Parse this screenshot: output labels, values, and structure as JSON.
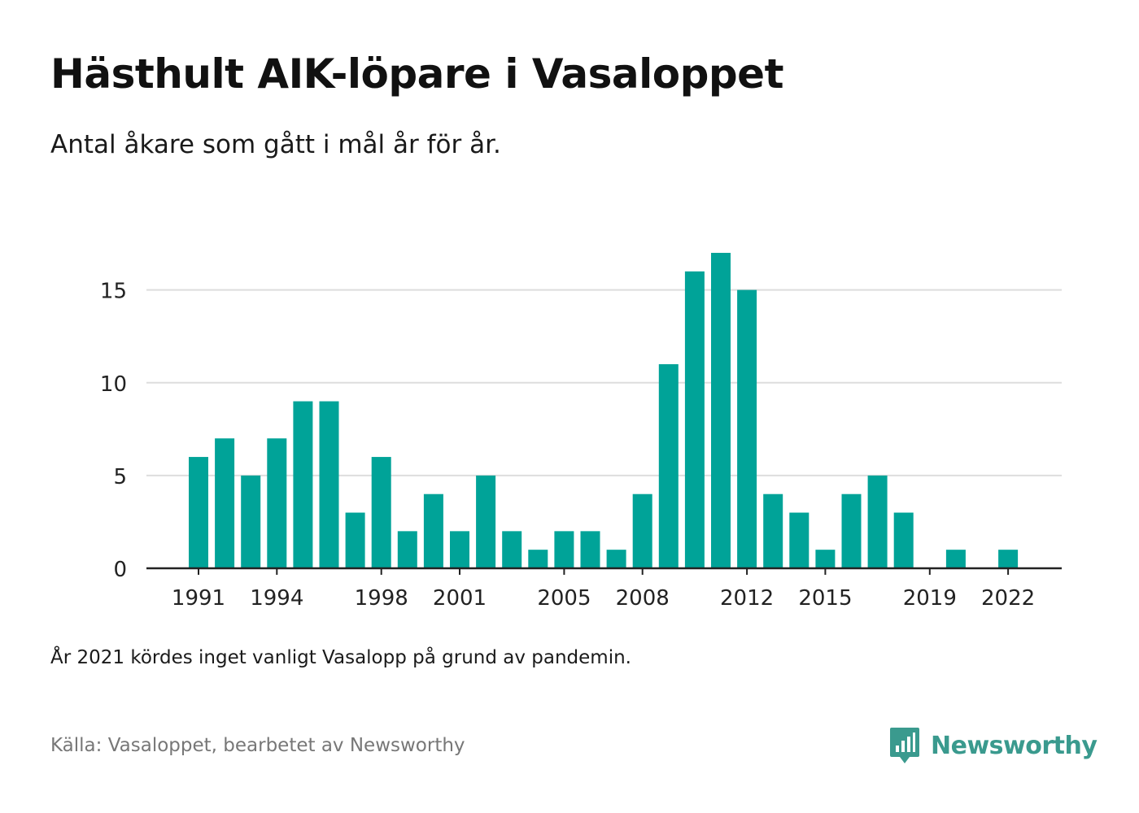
{
  "header": {
    "title": "Hästhult AIK-löpare i Vasaloppet",
    "subtitle": "Antal åkare som gått i mål år för år."
  },
  "footer": {
    "note": "År 2021 kördes inget vanligt Vasalopp på grund av pandemin.",
    "source": "Källa: Vasaloppet, bearbetet av Newsworthy",
    "brand": "Newsworthy"
  },
  "colors": {
    "bar": "#00a398",
    "brand": "#3a9a8e",
    "grid": "#dddddd",
    "axis": "#222222",
    "tick_text": "#222222"
  },
  "icons": {
    "brand": "bar-chart-speech-bubble-icon"
  },
  "chart_data": {
    "type": "bar",
    "title": "Hästhult AIK-löpare i Vasaloppet",
    "subtitle": "Antal åkare som gått i mål år för år.",
    "xlabel": "",
    "ylabel": "",
    "x": [
      1991,
      1992,
      1993,
      1994,
      1995,
      1996,
      1997,
      1998,
      1999,
      2000,
      2001,
      2002,
      2003,
      2004,
      2005,
      2006,
      2007,
      2008,
      2009,
      2010,
      2011,
      2012,
      2013,
      2014,
      2015,
      2016,
      2017,
      2018,
      2019,
      2020,
      2021,
      2022
    ],
    "values": [
      6,
      7,
      5,
      7,
      9,
      9,
      3,
      6,
      2,
      4,
      2,
      5,
      2,
      1,
      2,
      2,
      1,
      4,
      11,
      16,
      17,
      15,
      4,
      3,
      1,
      4,
      5,
      3,
      0,
      1,
      0,
      1
    ],
    "x_ticks": [
      1991,
      1994,
      1998,
      2001,
      2005,
      2008,
      2012,
      2015,
      2019,
      2022
    ],
    "y_ticks": [
      0,
      5,
      10,
      15
    ],
    "ylim": [
      0,
      17
    ],
    "grid": "horizontal",
    "legend": "none"
  }
}
